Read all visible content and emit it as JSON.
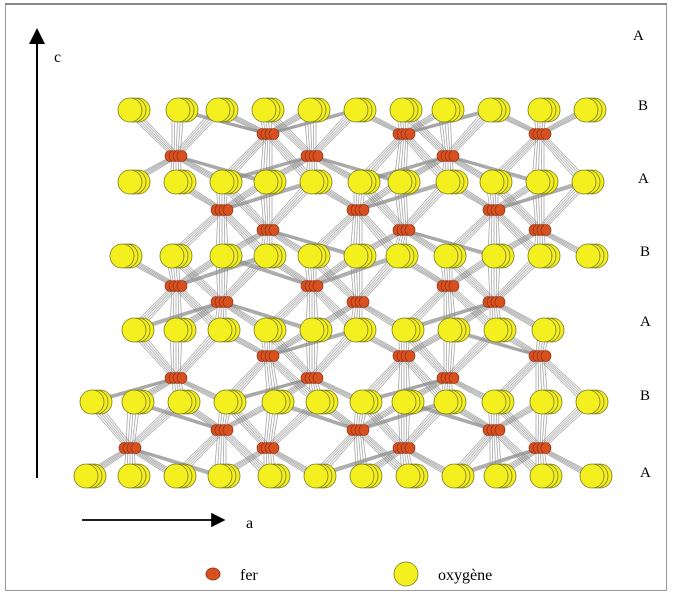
{
  "axes": {
    "c_label": "c",
    "a_label": "a"
  },
  "layer_labels": [
    "A",
    "B",
    "A",
    "B",
    "A",
    "B",
    "A"
  ],
  "legend": {
    "iron_label": "fer",
    "oxygen_label": "oxygène"
  },
  "colors": {
    "oxygen_fill": "#f4f020",
    "oxygen_stroke": "#7a7a20",
    "iron_fill": "#d8501e",
    "iron_stroke": "#8a2a10",
    "bond": "#8c8c8c"
  }
}
